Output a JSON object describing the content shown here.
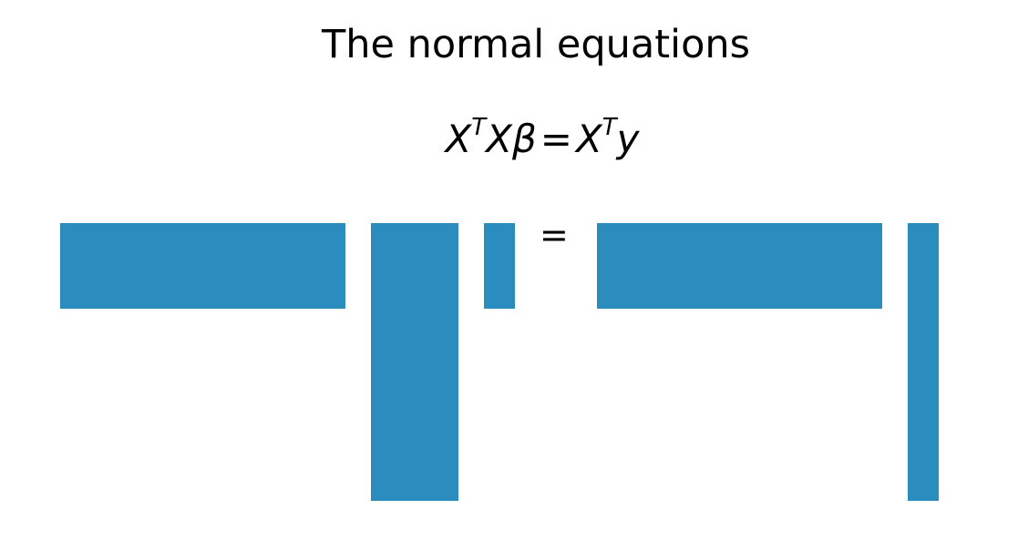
{
  "title": "The normal equations",
  "equation": {
    "lhs_X": "X",
    "lhs_T": "T",
    "lhs_X2": "X",
    "lhs_beta": "β",
    "equals": "=",
    "rhs_X": "X",
    "rhs_T": "T",
    "rhs_y": "y"
  },
  "equals_sign": "=",
  "colors": {
    "block": "#2b8cbe"
  },
  "blocks": [
    {
      "name": "x-transpose-block",
      "rows": "p",
      "cols": "n"
    },
    {
      "name": "x-block",
      "rows": "n",
      "cols": "p"
    },
    {
      "name": "beta-block",
      "rows": "p",
      "cols": "1"
    },
    {
      "name": "x-transpose-rhs-block",
      "rows": "p",
      "cols": "n"
    },
    {
      "name": "y-block",
      "rows": "n",
      "cols": "1"
    }
  ]
}
